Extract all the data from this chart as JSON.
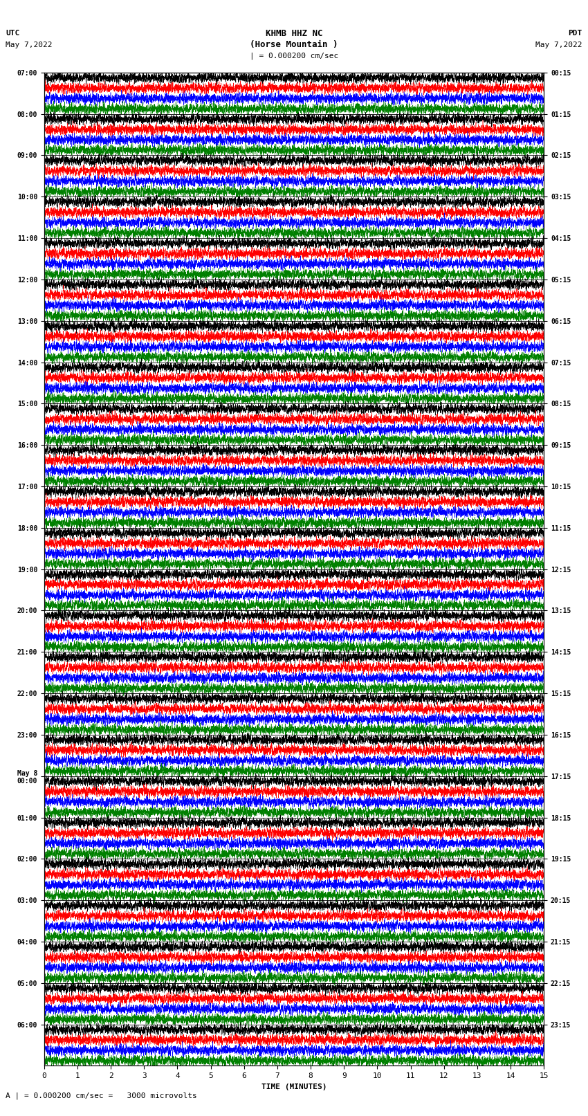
{
  "title_line1": "KHMB HHZ NC",
  "title_line2": "(Horse Mountain )",
  "title_line3": "| = 0.000200 cm/sec",
  "label_utc": "UTC",
  "label_date_left": "May 7,2022",
  "label_pdt": "PDT",
  "label_date_right": "May 7,2022",
  "xlabel": "TIME (MINUTES)",
  "footer": "A | = 0.000200 cm/sec =   3000 microvolts",
  "left_times": [
    "07:00",
    "08:00",
    "09:00",
    "10:00",
    "11:00",
    "12:00",
    "13:00",
    "14:00",
    "15:00",
    "16:00",
    "17:00",
    "18:00",
    "19:00",
    "20:00",
    "21:00",
    "22:00",
    "23:00",
    "May 8\n00:00",
    "01:00",
    "02:00",
    "03:00",
    "04:00",
    "05:00",
    "06:00"
  ],
  "right_times": [
    "00:15",
    "01:15",
    "02:15",
    "03:15",
    "04:15",
    "05:15",
    "06:15",
    "07:15",
    "08:15",
    "09:15",
    "10:15",
    "11:15",
    "12:15",
    "13:15",
    "14:15",
    "15:15",
    "16:15",
    "17:15",
    "18:15",
    "19:15",
    "20:15",
    "21:15",
    "22:15",
    "23:15"
  ],
  "trace_colors": [
    "black",
    "red",
    "blue",
    "green"
  ],
  "n_rows": 24,
  "n_traces_per_row": 4,
  "minutes": 15,
  "background_color": "white",
  "line_width": 0.35,
  "noise_seed": 42
}
